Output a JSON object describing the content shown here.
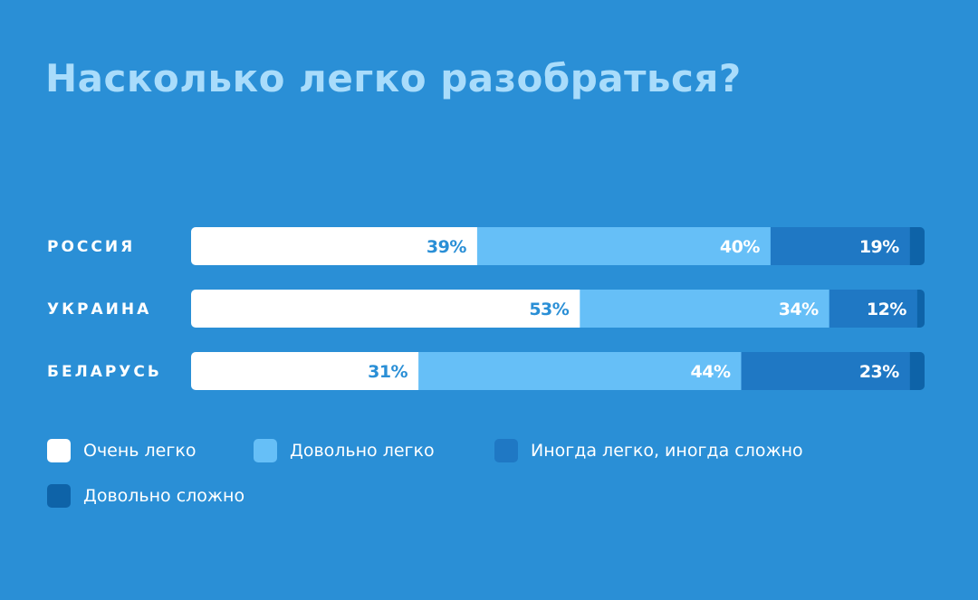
{
  "title": "Насколько легко разобраться?",
  "chart_data": {
    "type": "bar",
    "orientation": "horizontal",
    "stacked": true,
    "categories": [
      "РОССИЯ",
      "УКРАИНА",
      "БЕЛАРУСЬ"
    ],
    "series": [
      {
        "name": "Очень легко",
        "values": [
          39,
          53,
          31
        ],
        "labels": [
          "39%",
          "53%",
          "31%"
        ],
        "color": "#ffffff",
        "label_color": "#2a8fd6"
      },
      {
        "name": "Довольно легко",
        "values": [
          40,
          34,
          44
        ],
        "labels": [
          "40%",
          "34%",
          "44%"
        ],
        "color": "#66bff7",
        "label_color": "#ffffff"
      },
      {
        "name": "Иногда легко, иногда сложно",
        "values": [
          19,
          12,
          23
        ],
        "labels": [
          "19%",
          "12%",
          "23%"
        ],
        "color": "#1f78c4",
        "label_color": "#ffffff"
      },
      {
        "name": "Довольно сложно",
        "values": [
          2,
          1,
          2
        ],
        "labels": [
          "",
          "",
          ""
        ],
        "color": "#0e63a8",
        "label_color": "#ffffff"
      }
    ],
    "xlim": [
      0,
      100
    ],
    "grid": false,
    "legend_position": "bottom-left"
  }
}
